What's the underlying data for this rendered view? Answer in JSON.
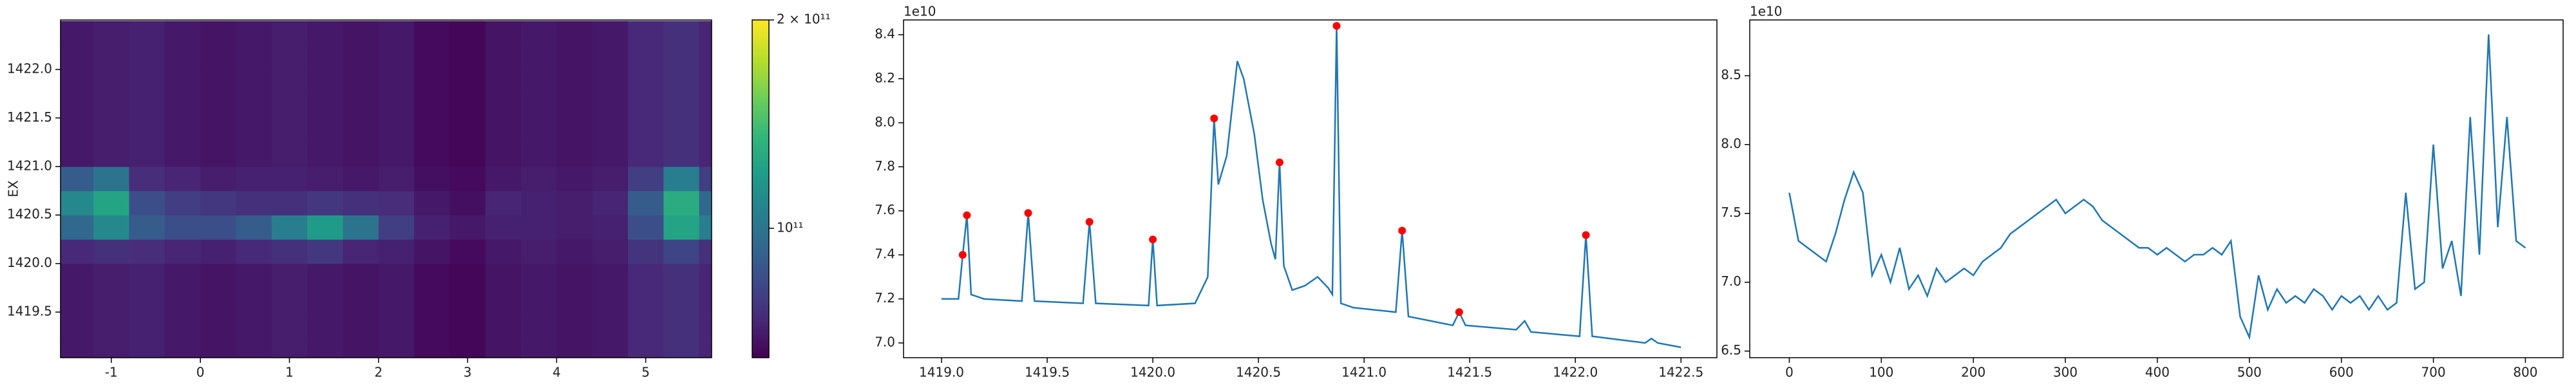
{
  "chart_data": [
    {
      "type": "heatmap",
      "ylabel": "EX",
      "x": [
        -1.4,
        -1.0,
        -0.6,
        -0.2,
        0.2,
        0.6,
        1.0,
        1.4,
        1.8,
        2.2,
        2.6,
        3.0,
        3.4,
        3.8,
        4.2,
        4.6,
        5.0,
        5.4,
        5.8
      ],
      "y": [
        1419.125,
        1419.375,
        1419.625,
        1419.875,
        1420.125,
        1420.375,
        1420.625,
        1420.875,
        1421.125,
        1421.375,
        1421.625,
        1421.875,
        1422.125,
        1422.375
      ],
      "values": [
        [
          70000000000.0,
          71000000000.0,
          72000000000.0,
          70000000000.0,
          69000000000.0,
          70000000000.0,
          71000000000.0,
          70000000000.0,
          69000000000.0,
          70000000000.0,
          67000000000.0,
          66000000000.0,
          69000000000.0,
          70000000000.0,
          69000000000.0,
          70000000000.0,
          74000000000.0,
          76000000000.0,
          73000000000.0
        ],
        [
          70000000000.0,
          71000000000.0,
          72000000000.0,
          70000000000.0,
          69000000000.0,
          70000000000.0,
          71000000000.0,
          70000000000.0,
          69000000000.0,
          70000000000.0,
          67000000000.0,
          66000000000.0,
          69000000000.0,
          70000000000.0,
          69000000000.0,
          70000000000.0,
          74000000000.0,
          76000000000.0,
          73000000000.0
        ],
        [
          70000000000.0,
          71000000000.0,
          72000000000.0,
          70000000000.0,
          69000000000.0,
          70000000000.0,
          71000000000.0,
          70000000000.0,
          69000000000.0,
          70000000000.0,
          67000000000.0,
          66000000000.0,
          69000000000.0,
          70000000000.0,
          69000000000.0,
          70000000000.0,
          74000000000.0,
          76000000000.0,
          73000000000.0
        ],
        [
          70000000000.0,
          71000000000.0,
          72000000000.0,
          70000000000.0,
          69000000000.0,
          70000000000.0,
          71000000000.0,
          70000000000.0,
          69000000000.0,
          70000000000.0,
          67000000000.0,
          66000000000.0,
          69000000000.0,
          70000000000.0,
          69000000000.0,
          70000000000.0,
          74000000000.0,
          76000000000.0,
          73000000000.0
        ],
        [
          74000000000.0,
          76000000000.0,
          75000000000.0,
          73000000000.0,
          72000000000.0,
          74000000000.0,
          76000000000.0,
          78000000000.0,
          73000000000.0,
          72000000000.0,
          69000000000.0,
          67000000000.0,
          70000000000.0,
          71000000000.0,
          70000000000.0,
          71000000000.0,
          77000000000.0,
          82000000000.0,
          76000000000.0
        ],
        [
          95000000000.0,
          110000000000.0,
          90000000000.0,
          85000000000.0,
          85000000000.0,
          90000000000.0,
          105000000000.0,
          120000000000.0,
          100000000000.0,
          80000000000.0,
          72000000000.0,
          70000000000.0,
          72000000000.0,
          72000000000.0,
          71000000000.0,
          72000000000.0,
          85000000000.0,
          125000000000.0,
          105000000000.0
        ],
        [
          110000000000.0,
          125000000000.0,
          85000000000.0,
          80000000000.0,
          78000000000.0,
          76000000000.0,
          76000000000.0,
          78000000000.0,
          76000000000.0,
          75000000000.0,
          70000000000.0,
          68000000000.0,
          73000000000.0,
          72000000000.0,
          71000000000.0,
          73000000000.0,
          90000000000.0,
          130000000000.0,
          95000000000.0
        ],
        [
          90000000000.0,
          100000000000.0,
          75000000000.0,
          73000000000.0,
          71000000000.0,
          72000000000.0,
          72000000000.0,
          71000000000.0,
          70000000000.0,
          71000000000.0,
          68000000000.0,
          67000000000.0,
          70000000000.0,
          71000000000.0,
          70000000000.0,
          71000000000.0,
          80000000000.0,
          105000000000.0,
          80000000000.0
        ],
        [
          70000000000.0,
          71000000000.0,
          72000000000.0,
          70000000000.0,
          69000000000.0,
          70000000000.0,
          71000000000.0,
          70000000000.0,
          69000000000.0,
          70000000000.0,
          67000000000.0,
          66000000000.0,
          69000000000.0,
          70000000000.0,
          69000000000.0,
          70000000000.0,
          74000000000.0,
          76000000000.0,
          73000000000.0
        ],
        [
          70000000000.0,
          71000000000.0,
          72000000000.0,
          70000000000.0,
          69000000000.0,
          70000000000.0,
          71000000000.0,
          70000000000.0,
          69000000000.0,
          70000000000.0,
          67000000000.0,
          66000000000.0,
          69000000000.0,
          70000000000.0,
          69000000000.0,
          70000000000.0,
          74000000000.0,
          76000000000.0,
          73000000000.0
        ],
        [
          70000000000.0,
          71000000000.0,
          72000000000.0,
          70000000000.0,
          69000000000.0,
          70000000000.0,
          71000000000.0,
          70000000000.0,
          69000000000.0,
          70000000000.0,
          67000000000.0,
          66000000000.0,
          69000000000.0,
          70000000000.0,
          69000000000.0,
          70000000000.0,
          74000000000.0,
          76000000000.0,
          73000000000.0
        ],
        [
          70000000000.0,
          71000000000.0,
          72000000000.0,
          70000000000.0,
          69000000000.0,
          70000000000.0,
          71000000000.0,
          70000000000.0,
          69000000000.0,
          70000000000.0,
          67000000000.0,
          66000000000.0,
          69000000000.0,
          70000000000.0,
          69000000000.0,
          70000000000.0,
          74000000000.0,
          76000000000.0,
          73000000000.0
        ],
        [
          70000000000.0,
          71000000000.0,
          72000000000.0,
          70000000000.0,
          69000000000.0,
          70000000000.0,
          71000000000.0,
          70000000000.0,
          69000000000.0,
          70000000000.0,
          67000000000.0,
          66000000000.0,
          69000000000.0,
          70000000000.0,
          69000000000.0,
          70000000000.0,
          74000000000.0,
          76000000000.0,
          73000000000.0
        ],
        [
          70000000000.0,
          71000000000.0,
          72000000000.0,
          70000000000.0,
          69000000000.0,
          70000000000.0,
          71000000000.0,
          70000000000.0,
          69000000000.0,
          70000000000.0,
          67000000000.0,
          66000000000.0,
          69000000000.0,
          70000000000.0,
          69000000000.0,
          70000000000.0,
          74000000000.0,
          76000000000.0,
          73000000000.0
        ]
      ],
      "xlim": [
        -1.57,
        5.74
      ],
      "ylim": [
        1419.03,
        1422.51
      ],
      "xticks": [
        -1,
        0,
        1,
        2,
        3,
        4,
        5
      ],
      "yticks": [
        1419.5,
        {
          "value": 1420,
          "label": "1420.0"
        },
        1420.5,
        {
          "value": 1421,
          "label": "1421.0"
        },
        1421.5,
        {
          "value": 1422,
          "label": "1422.0"
        }
      ],
      "colormap": "viridis",
      "clim": [
        65000000000.0,
        200000000000.0
      ],
      "color_log_scale": true,
      "cticks": [
        {
          "value": 100000000000.0,
          "label": "10¹¹"
        },
        {
          "value": 200000000000.0,
          "label": "2 × 10¹¹"
        }
      ]
    },
    {
      "type": "line",
      "y_offset": "1e10",
      "color": "#1f77b4",
      "x": [
        1419.0,
        1419.08,
        1419.1,
        1419.12,
        1419.14,
        1419.2,
        1419.38,
        1419.41,
        1419.44,
        1419.67,
        1419.7,
        1419.73,
        1419.98,
        1420.0,
        1420.02,
        1420.2,
        1420.26,
        1420.29,
        1420.31,
        1420.35,
        1420.4,
        1420.43,
        1420.48,
        1420.52,
        1420.56,
        1420.58,
        1420.6,
        1420.62,
        1420.66,
        1420.72,
        1420.78,
        1420.83,
        1420.85,
        1420.87,
        1420.89,
        1420.95,
        1421.15,
        1421.18,
        1421.21,
        1421.42,
        1421.45,
        1421.48,
        1421.72,
        1421.76,
        1421.79,
        1422.02,
        1422.05,
        1422.08,
        1422.33,
        1422.36,
        1422.39,
        1422.5
      ],
      "values": [
        7.2,
        7.2,
        7.4,
        7.58,
        7.22,
        7.2,
        7.19,
        7.59,
        7.19,
        7.18,
        7.55,
        7.18,
        7.17,
        7.47,
        7.17,
        7.18,
        7.3,
        8.02,
        7.72,
        7.85,
        8.28,
        8.2,
        7.95,
        7.65,
        7.45,
        7.38,
        7.82,
        7.35,
        7.24,
        7.26,
        7.3,
        7.25,
        7.22,
        8.44,
        7.18,
        7.16,
        7.14,
        7.51,
        7.12,
        7.08,
        7.14,
        7.08,
        7.06,
        7.1,
        7.05,
        7.03,
        7.49,
        7.03,
        7.0,
        7.02,
        7.0,
        6.98
      ],
      "peaks": {
        "color": "#ff0000",
        "x": [
          1419.1,
          1419.12,
          1419.41,
          1419.7,
          1420.0,
          1420.29,
          1420.6,
          1420.87,
          1421.18,
          1421.45,
          1422.05
        ],
        "values": [
          7.4,
          7.58,
          7.59,
          7.55,
          7.47,
          8.02,
          7.82,
          8.44,
          7.51,
          7.14,
          7.49
        ]
      },
      "xlim": [
        1418.82,
        1422.67
      ],
      "ylim": [
        6.933,
        8.467
      ],
      "xticks": [
        {
          "value": 1419,
          "label": "1419.0"
        },
        1419.5,
        {
          "value": 1420,
          "label": "1420.0"
        },
        1420.5,
        {
          "value": 1421,
          "label": "1421.0"
        },
        1421.5,
        {
          "value": 1422,
          "label": "1422.0"
        },
        1422.5
      ],
      "yticks": [
        {
          "value": 7,
          "label": "7.0"
        },
        7.2,
        7.4,
        7.6,
        7.8,
        {
          "value": 8,
          "label": "8.0"
        },
        8.2,
        8.4
      ]
    },
    {
      "type": "line",
      "y_offset": "1e10",
      "color": "#1f77b4",
      "x": [
        0,
        10,
        20,
        30,
        40,
        50,
        60,
        70,
        80,
        90,
        100,
        110,
        120,
        130,
        140,
        150,
        160,
        170,
        180,
        190,
        200,
        210,
        220,
        230,
        240,
        250,
        260,
        270,
        280,
        290,
        300,
        310,
        320,
        330,
        340,
        350,
        360,
        370,
        380,
        390,
        400,
        410,
        420,
        430,
        440,
        450,
        460,
        470,
        480,
        490,
        500,
        510,
        520,
        530,
        540,
        550,
        560,
        570,
        580,
        590,
        600,
        610,
        620,
        630,
        640,
        650,
        660,
        670,
        680,
        690,
        700,
        710,
        720,
        730,
        740,
        750,
        760,
        770,
        780,
        790,
        800
      ],
      "values": [
        7.65,
        7.3,
        7.25,
        7.2,
        7.15,
        7.35,
        7.6,
        7.8,
        7.65,
        7.05,
        7.2,
        7.0,
        7.25,
        6.95,
        7.05,
        6.9,
        7.1,
        7.0,
        7.05,
        7.1,
        7.05,
        7.15,
        7.2,
        7.25,
        7.35,
        7.4,
        7.45,
        7.5,
        7.55,
        7.6,
        7.5,
        7.55,
        7.6,
        7.55,
        7.45,
        7.4,
        7.35,
        7.3,
        7.25,
        7.25,
        7.2,
        7.25,
        7.2,
        7.15,
        7.2,
        7.2,
        7.25,
        7.2,
        7.3,
        6.75,
        6.6,
        7.05,
        6.8,
        6.95,
        6.85,
        6.9,
        6.85,
        6.95,
        6.9,
        6.8,
        6.9,
        6.85,
        6.9,
        6.8,
        6.9,
        6.8,
        6.85,
        7.65,
        6.95,
        7.0,
        8.0,
        7.1,
        7.3,
        6.9,
        8.2,
        7.2,
        8.8,
        7.4,
        8.2,
        7.3,
        7.25
      ],
      "xlim": [
        -43,
        841
      ],
      "ylim": [
        6.452,
        8.905
      ],
      "xticks": [
        0,
        100,
        200,
        300,
        400,
        500,
        600,
        700,
        800
      ],
      "yticks": [
        6.5,
        {
          "value": 7,
          "label": "7.0"
        },
        7.5,
        {
          "value": 8,
          "label": "8.0"
        },
        8.5
      ]
    }
  ]
}
